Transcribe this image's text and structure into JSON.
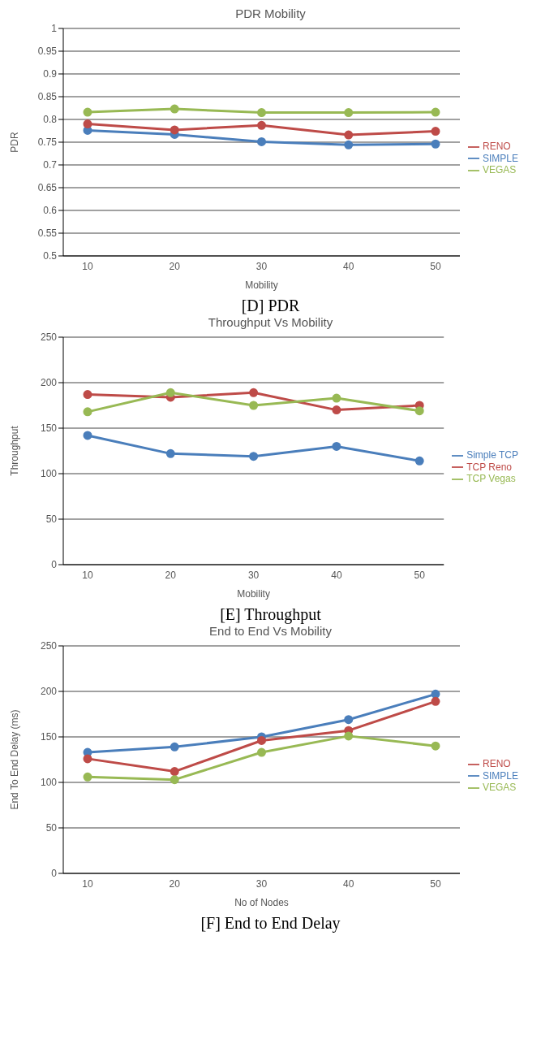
{
  "chart_data": [
    {
      "type": "line",
      "title": "PDR Mobility",
      "xlabel": "Mobility",
      "ylabel": "PDR",
      "categories": [
        "10",
        "20",
        "30",
        "40",
        "50"
      ],
      "ylim": [
        0.5,
        1
      ],
      "yticks": [
        0.5,
        0.55,
        0.6,
        0.65,
        0.7,
        0.75,
        0.8,
        0.85,
        0.9,
        0.95,
        1
      ],
      "grid": "y",
      "legend": "right",
      "marker": "circle",
      "line_style": "solid",
      "annotations": [
        "[D] PDR"
      ],
      "series": [
        {
          "name": "SIMPLE",
          "color": "#4a7ebb",
          "values": [
            0.776,
            0.767,
            0.751,
            0.744,
            0.746
          ]
        },
        {
          "name": "RENO",
          "color": "#be4b48",
          "values": [
            0.79,
            0.777,
            0.787,
            0.766,
            0.774
          ]
        },
        {
          "name": "VEGAS",
          "color": "#98b954",
          "values": [
            0.816,
            0.823,
            0.815,
            0.815,
            0.816
          ]
        }
      ]
    },
    {
      "type": "line",
      "title": "Throughput Vs Mobility",
      "xlabel": "Mobility",
      "ylabel": "Throughput",
      "categories": [
        "10",
        "20",
        "30",
        "40",
        "50"
      ],
      "ylim": [
        0,
        250
      ],
      "yticks": [
        0,
        50,
        100,
        150,
        200,
        250
      ],
      "grid": "y",
      "legend": "right",
      "marker": "circle",
      "line_style": "solid",
      "annotations": [
        "[E] Throughput"
      ],
      "series": [
        {
          "name": "Simple TCP",
          "color": "#4a7ebb",
          "values": [
            142,
            122,
            119,
            130,
            114
          ]
        },
        {
          "name": "TCP Reno",
          "color": "#be4b48",
          "values": [
            187,
            184,
            189,
            170,
            175
          ]
        },
        {
          "name": "TCP Vegas",
          "color": "#98b954",
          "values": [
            168,
            189,
            175,
            183,
            169
          ]
        }
      ]
    },
    {
      "type": "line",
      "title": "End to End Vs Mobility",
      "xlabel": "No of Nodes",
      "ylabel": "End To End Delay (ms)",
      "categories": [
        "10",
        "20",
        "30",
        "40",
        "50"
      ],
      "ylim": [
        0,
        250
      ],
      "yticks": [
        0,
        50,
        100,
        150,
        200,
        250
      ],
      "grid": "y",
      "legend": "right",
      "marker": "circle",
      "line_style": "solid",
      "annotations": [
        "[F] End to End Delay"
      ],
      "series": [
        {
          "name": "SIMPLE",
          "color": "#4a7ebb",
          "values": [
            133,
            139,
            150,
            169,
            197
          ]
        },
        {
          "name": "RENO",
          "color": "#be4b48",
          "values": [
            126,
            112,
            146,
            157,
            189
          ]
        },
        {
          "name": "VEGAS",
          "color": "#98b954",
          "values": [
            106,
            103,
            133,
            151,
            140
          ]
        }
      ]
    }
  ]
}
